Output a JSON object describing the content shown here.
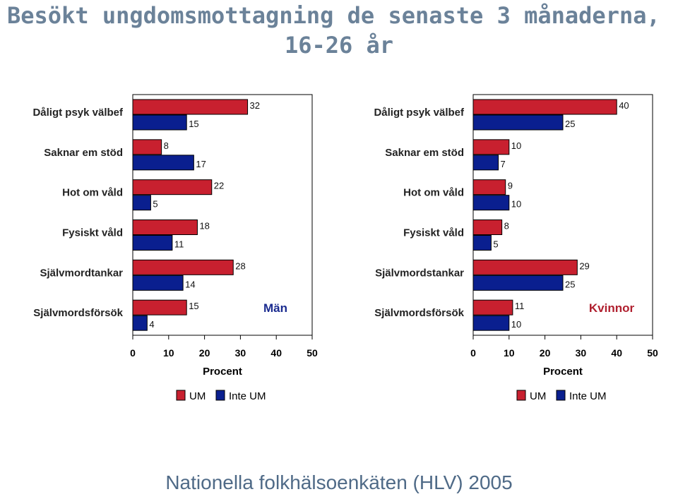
{
  "title": {
    "line1": "Besökt ungdomsmottagning de senaste 3 månaderna,",
    "line2": "16-26 år"
  },
  "footer": "Nationella folkhälsoenkäten (HLV) 2005",
  "colors": {
    "um": "#c8202f",
    "inte_um": "#0a1f8f"
  },
  "chart_data": [
    {
      "type": "bar",
      "orientation": "horizontal",
      "panel_label": "Män",
      "categories": [
        "Dåligt psyk välbef",
        "Saknar em stöd",
        "Hot om våld",
        "Fysiskt våld",
        "Självmordtankar",
        "Självmordsförsök"
      ],
      "series": [
        {
          "name": "UM",
          "values": [
            32,
            8,
            22,
            18,
            28,
            15
          ]
        },
        {
          "name": "Inte UM",
          "values": [
            15,
            17,
            5,
            11,
            14,
            4
          ]
        }
      ],
      "xlabel": "Procent",
      "xlim": [
        0,
        50
      ],
      "xticks": [
        0,
        10,
        20,
        30,
        40,
        50
      ],
      "legend": {
        "placement": "bottom",
        "entries": [
          "UM",
          "Inte UM"
        ]
      }
    },
    {
      "type": "bar",
      "orientation": "horizontal",
      "panel_label": "Kvinnor",
      "categories": [
        "Dåligt psyk välbef",
        "Saknar em stöd",
        "Hot om våld",
        "Fysiskt våld",
        "Självmordstankar",
        "Självmordsförsök"
      ],
      "series": [
        {
          "name": "UM",
          "values": [
            40,
            10,
            9,
            8,
            29,
            11
          ]
        },
        {
          "name": "Inte UM",
          "values": [
            25,
            7,
            10,
            5,
            25,
            10
          ]
        }
      ],
      "xlabel": "Procent",
      "xlim": [
        0,
        50
      ],
      "xticks": [
        0,
        10,
        20,
        30,
        40,
        50
      ],
      "legend": {
        "placement": "bottom",
        "entries": [
          "UM",
          "Inte UM"
        ]
      }
    }
  ]
}
